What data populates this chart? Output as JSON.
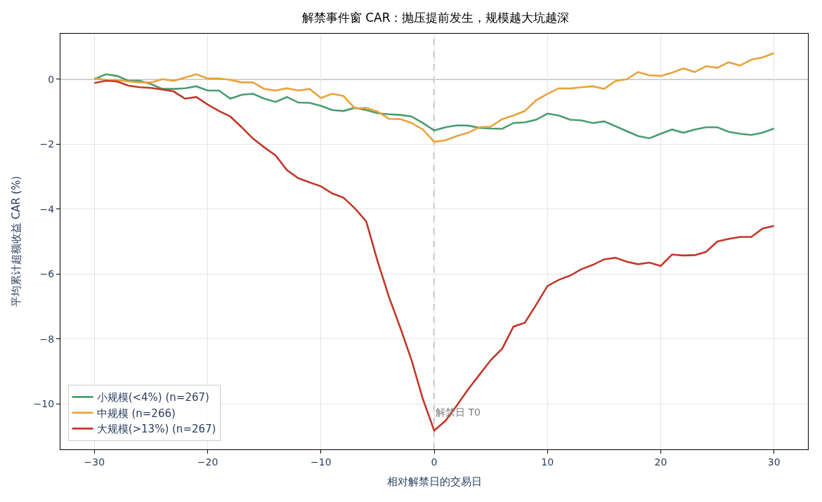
{
  "chart_data": {
    "type": "line",
    "title": "解禁事件窗 CAR：抛压提前发生，规模越大坑越深",
    "xlabel": "相对解禁日的交易日",
    "ylabel": "平均累计超额收益 CAR (%)",
    "x": [
      -30,
      -29,
      -28,
      -27,
      -26,
      -25,
      -24,
      -23,
      -22,
      -21,
      -20,
      -19,
      -18,
      -17,
      -16,
      -15,
      -14,
      -13,
      -12,
      -11,
      -10,
      -9,
      -8,
      -7,
      -6,
      -5,
      -4,
      -3,
      -2,
      -1,
      0,
      1,
      2,
      3,
      4,
      5,
      6,
      7,
      8,
      9,
      10,
      11,
      12,
      13,
      14,
      15,
      16,
      17,
      18,
      19,
      20,
      21,
      22,
      23,
      24,
      25,
      26,
      27,
      28,
      29,
      30
    ],
    "series": [
      {
        "name": "小规模(<4%) (n=267)",
        "color": "#4a9d6f",
        "values": [
          0.0,
          0.15,
          0.1,
          -0.05,
          -0.05,
          -0.15,
          -0.3,
          -0.3,
          -0.28,
          -0.22,
          -0.35,
          -0.35,
          -0.6,
          -0.48,
          -0.45,
          -0.6,
          -0.7,
          -0.55,
          -0.72,
          -0.73,
          -0.82,
          -0.95,
          -0.98,
          -0.88,
          -0.95,
          -1.05,
          -1.08,
          -1.1,
          -1.15,
          -1.35,
          -1.58,
          -1.48,
          -1.42,
          -1.43,
          -1.5,
          -1.52,
          -1.53,
          -1.35,
          -1.33,
          -1.25,
          -1.06,
          -1.12,
          -1.25,
          -1.27,
          -1.35,
          -1.3,
          -1.45,
          -1.6,
          -1.75,
          -1.82,
          -1.68,
          -1.55,
          -1.65,
          -1.55,
          -1.48,
          -1.48,
          -1.62,
          -1.68,
          -1.72,
          -1.65,
          -1.52
        ]
      },
      {
        "name": "中规模 (n=266)",
        "color": "#e8a33d",
        "values": [
          0.03,
          -0.02,
          -0.03,
          -0.07,
          -0.1,
          -0.1,
          0.0,
          -0.05,
          0.05,
          0.15,
          0.02,
          0.02,
          -0.02,
          -0.1,
          -0.1,
          -0.3,
          -0.35,
          -0.28,
          -0.35,
          -0.3,
          -0.58,
          -0.45,
          -0.52,
          -0.9,
          -0.88,
          -1.0,
          -1.22,
          -1.23,
          -1.35,
          -1.55,
          -1.93,
          -1.88,
          -1.75,
          -1.65,
          -1.48,
          -1.46,
          -1.23,
          -1.12,
          -0.98,
          -0.65,
          -0.45,
          -0.28,
          -0.29,
          -0.25,
          -0.22,
          -0.3,
          -0.06,
          0.0,
          0.22,
          0.12,
          0.1,
          0.2,
          0.33,
          0.22,
          0.4,
          0.35,
          0.52,
          0.42,
          0.6,
          0.67,
          0.8
        ]
      },
      {
        "name": "大规模(>13%) (n=267)",
        "color": "#c0392b",
        "values": [
          -0.12,
          -0.05,
          -0.07,
          -0.2,
          -0.25,
          -0.27,
          -0.32,
          -0.38,
          -0.6,
          -0.55,
          -0.78,
          -0.98,
          -1.15,
          -1.48,
          -1.83,
          -2.1,
          -2.35,
          -2.8,
          -3.05,
          -3.18,
          -3.3,
          -3.52,
          -3.65,
          -3.98,
          -4.38,
          -5.6,
          -6.7,
          -7.65,
          -8.65,
          -9.85,
          -10.82,
          -10.52,
          -10.05,
          -9.55,
          -9.1,
          -8.65,
          -8.3,
          -7.62,
          -7.5,
          -6.95,
          -6.37,
          -6.18,
          -6.05,
          -5.85,
          -5.72,
          -5.55,
          -5.5,
          -5.62,
          -5.7,
          -5.65,
          -5.75,
          -5.4,
          -5.43,
          -5.42,
          -5.32,
          -5.0,
          -4.92,
          -4.86,
          -4.86,
          -4.6,
          -4.52
        ]
      }
    ],
    "xlim": [
      -33,
      33
    ],
    "xticks": [
      -30,
      -20,
      -10,
      0,
      10,
      20,
      30
    ],
    "ylim": [
      -11.4,
      1.4
    ],
    "yticks": [
      -10,
      -8,
      -6,
      -4,
      -2,
      0
    ],
    "ref_lines": [
      {
        "axis": "y",
        "value": 0,
        "color": "#808080",
        "line_style": "solid"
      },
      {
        "axis": "x",
        "value": 0,
        "label": "解禁日 T0",
        "color": "#808080",
        "line_style": "dashed"
      }
    ],
    "grid": true,
    "legend": "bottom left",
    "line_style": "solid",
    "marker": "none"
  }
}
